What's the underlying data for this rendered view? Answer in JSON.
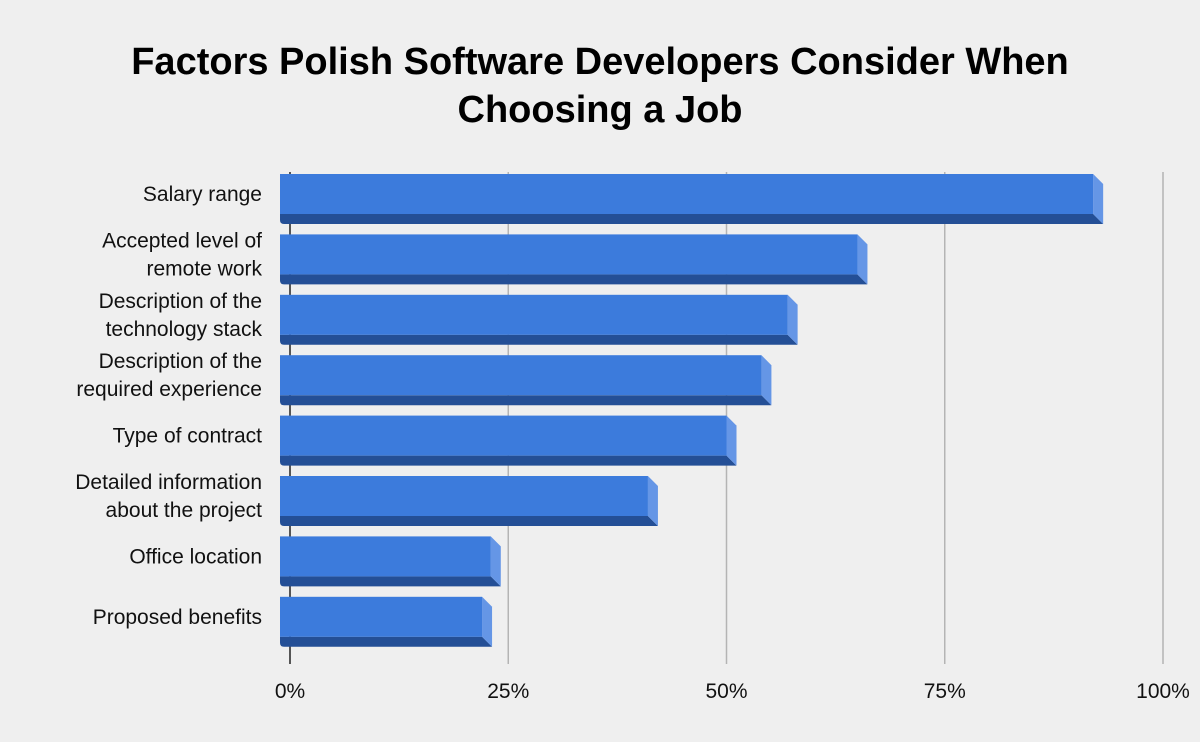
{
  "chart_data": {
    "type": "bar",
    "orientation": "horizontal",
    "title": "Factors Polish Software Developers Consider When\nChoosing a Job",
    "categories": [
      [
        "Salary range"
      ],
      [
        "Accepted level of",
        "remote work"
      ],
      [
        "Description of the",
        "technology stack"
      ],
      [
        "Description of the",
        "required experience"
      ],
      [
        "Type of contract"
      ],
      [
        "Detailed information",
        "about the project"
      ],
      [
        "Office location"
      ],
      [
        "Proposed benefits"
      ]
    ],
    "values": [
      92,
      65,
      57,
      54,
      50,
      41,
      23,
      22
    ],
    "xlim": [
      0,
      100
    ],
    "x_ticks": [
      {
        "value": 0,
        "label": "0%"
      },
      {
        "value": 25,
        "label": "25%"
      },
      {
        "value": 50,
        "label": "50%"
      },
      {
        "value": 75,
        "label": "75%"
      },
      {
        "value": 100,
        "label": "100%"
      }
    ],
    "xlabel": "",
    "ylabel": "",
    "grid": "vertical",
    "legend": "none",
    "colors": {
      "bar_face": "#3c7bdc",
      "bar_bottom": "#244f96",
      "bar_side": "#6596e6",
      "grid": "#b4b4b4",
      "background": "#efefef"
    }
  }
}
